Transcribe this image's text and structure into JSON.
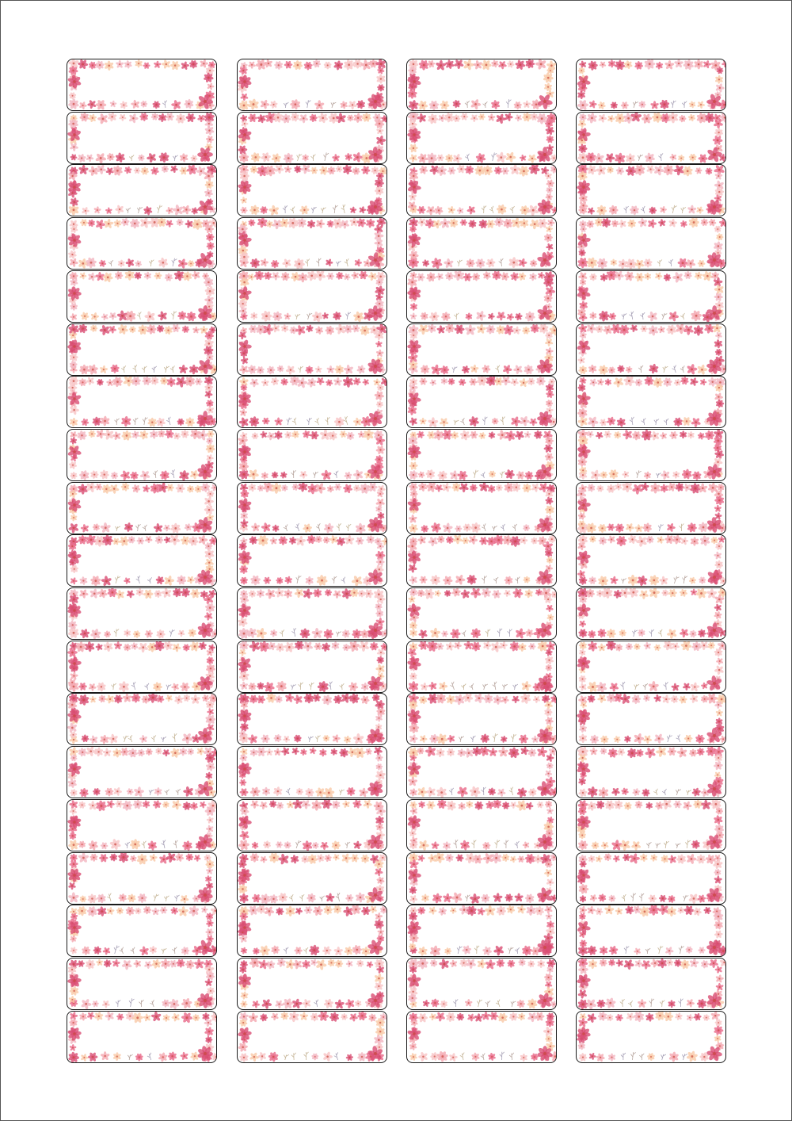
{
  "sheet": {
    "columns": 4,
    "rows": 19,
    "label_content": "",
    "border_color": "#1a1a1a",
    "flower_colors": [
      "#f4a7b0",
      "#f7c4c6",
      "#e86a8a",
      "#f9c9a8",
      "#d94f74",
      "#f2b5c0",
      "#c94a3f"
    ],
    "leaf_colors": [
      "#b9a7a0",
      "#c7b79a",
      "#a9a3b8"
    ]
  }
}
